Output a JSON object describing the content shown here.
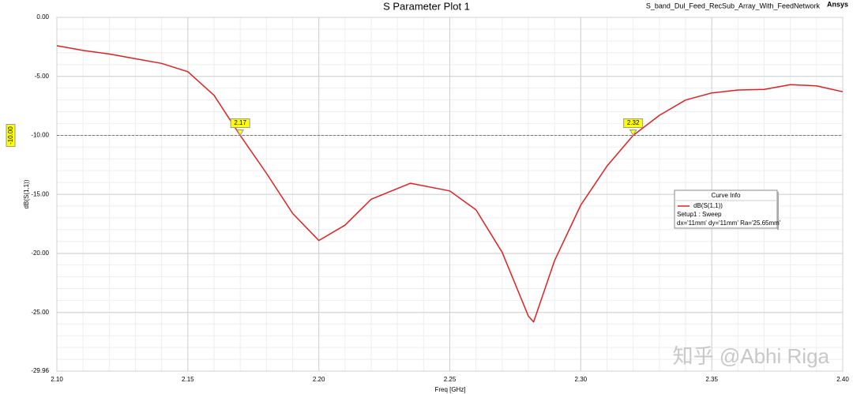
{
  "chart_data": {
    "type": "line",
    "title": "S Parameter Plot 1",
    "subtitle": "S_band_Dul_Feed_RecSub_Array_With_FeedNetwork",
    "brand": "Ansys",
    "x_label": "Freq [GHz]",
    "y_label": "dB(S(1,1))",
    "x": [
      2.1,
      2.11,
      2.12,
      2.13,
      2.14,
      2.15,
      2.16,
      2.17,
      2.18,
      2.19,
      2.2,
      2.21,
      2.22,
      2.235,
      2.25,
      2.26,
      2.27,
      2.28,
      2.282,
      2.29,
      2.3,
      2.31,
      2.32,
      2.33,
      2.34,
      2.35,
      2.36,
      2.37,
      2.38,
      2.39,
      2.4
    ],
    "series": [
      {
        "name": "dB(S(1,1))",
        "color": "#e02020",
        "values": [
          -2.4,
          -2.8,
          -3.1,
          -3.5,
          -3.9,
          -4.6,
          -6.6,
          -10.0,
          -13.2,
          -16.6,
          -18.9,
          -17.6,
          -15.4,
          -14.05,
          -14.7,
          -16.3,
          -19.9,
          -25.3,
          -25.8,
          -20.6,
          -15.9,
          -12.6,
          -10.0,
          -8.3,
          -7.0,
          -6.4,
          -6.15,
          -6.1,
          -5.7,
          -5.8,
          -6.3
        ]
      }
    ],
    "xlim": [
      2.1,
      2.4
    ],
    "xticks": [
      {
        "value": 2.1,
        "label": "2.10"
      },
      {
        "value": 2.15,
        "label": "2.15"
      },
      {
        "value": 2.2,
        "label": "2.20"
      },
      {
        "value": 2.25,
        "label": "2.25"
      },
      {
        "value": 2.3,
        "label": "2.30"
      },
      {
        "value": 2.35,
        "label": "2.35"
      },
      {
        "value": 2.4,
        "label": "2.40"
      }
    ],
    "ylim": [
      -29.96,
      0
    ],
    "yticks": [
      {
        "value": 0,
        "label": "0.00"
      },
      {
        "value": -5,
        "label": "-5.00"
      },
      {
        "value": -10,
        "label": "-10.00"
      },
      {
        "value": -15,
        "label": "-15.00"
      },
      {
        "value": -20,
        "label": "-20.00"
      },
      {
        "value": -25,
        "label": "-25.00"
      },
      {
        "value": -29.96,
        "label": "-29.96"
      }
    ],
    "grid": true,
    "ref_line": {
      "value": -10,
      "label": "-10.00"
    },
    "markers": [
      {
        "x": 2.17,
        "label": "2.17"
      },
      {
        "x": 2.32,
        "label": "2.32"
      }
    ],
    "legend": {
      "title": "Curve Info",
      "lines": [
        "Setup1 : Sweep",
        "dx='11mm' dy='11mm' Ra='25.65mm'"
      ]
    },
    "watermark": "知乎 @Abhi Riga"
  }
}
